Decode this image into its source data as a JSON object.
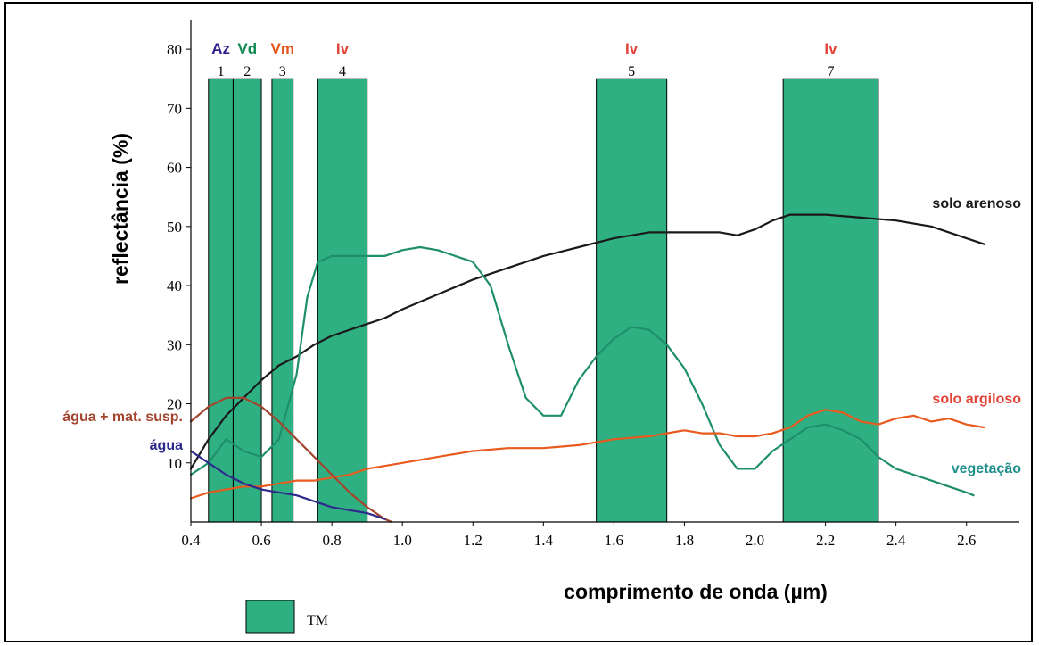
{
  "chart_data": {
    "type": "line",
    "xlabel": "comprimento de onda (µm)",
    "ylabel": "reflectância (%)",
    "xlim": [
      0.4,
      2.75
    ],
    "ylim": [
      0,
      85
    ],
    "x_ticks": [
      "0.4",
      "0.6",
      "0.8",
      "1.0",
      "1.2",
      "1.4",
      "1.6",
      "1.8",
      "2.0",
      "2.2",
      "2.4",
      "2.6"
    ],
    "y_ticks": [
      "10",
      "20",
      "30",
      "40",
      "50",
      "60",
      "70",
      "80"
    ],
    "bands": [
      {
        "number": "1",
        "code": "Az",
        "code_color": "#2e1f8c",
        "x0": 0.45,
        "x1": 0.52
      },
      {
        "number": "2",
        "code": "Vd",
        "code_color": "#0f8a52",
        "x0": 0.52,
        "x1": 0.6
      },
      {
        "number": "3",
        "code": "Vm",
        "code_color": "#e2561a",
        "x0": 0.63,
        "x1": 0.69
      },
      {
        "number": "4",
        "code": "Iv",
        "code_color": "#e2443a",
        "x0": 0.76,
        "x1": 0.9
      },
      {
        "number": "5",
        "code": "Iv",
        "code_color": "#e2443a",
        "x0": 1.55,
        "x1": 1.75
      },
      {
        "number": "7",
        "code": "Iv",
        "code_color": "#e2443a",
        "x0": 2.08,
        "x1": 2.35
      }
    ],
    "band_top": 75,
    "band_color": "#2fb082",
    "series": [
      {
        "name": "solo arenoso",
        "color": "#1a1a1a",
        "x": [
          0.4,
          0.45,
          0.5,
          0.55,
          0.6,
          0.65,
          0.7,
          0.75,
          0.8,
          0.85,
          0.9,
          0.95,
          1.0,
          1.1,
          1.2,
          1.3,
          1.4,
          1.5,
          1.6,
          1.7,
          1.8,
          1.9,
          1.95,
          2.0,
          2.05,
          2.1,
          2.2,
          2.3,
          2.4,
          2.5,
          2.6,
          2.65
        ],
        "y": [
          9,
          14,
          18,
          21,
          24,
          26.5,
          28,
          30,
          31.5,
          32.5,
          33.5,
          34.5,
          36,
          38.5,
          41,
          43,
          45,
          46.5,
          48,
          49,
          49,
          49,
          48.5,
          49.5,
          51,
          52,
          52,
          51.5,
          51,
          50,
          48,
          47
        ]
      },
      {
        "name": "vegetação",
        "color": "#1e8f6a",
        "x": [
          0.4,
          0.45,
          0.5,
          0.55,
          0.6,
          0.65,
          0.7,
          0.73,
          0.76,
          0.8,
          0.9,
          0.95,
          1.0,
          1.05,
          1.1,
          1.15,
          1.2,
          1.25,
          1.3,
          1.35,
          1.4,
          1.45,
          1.5,
          1.55,
          1.6,
          1.65,
          1.7,
          1.75,
          1.8,
          1.85,
          1.9,
          1.95,
          2.0,
          2.05,
          2.1,
          2.15,
          2.2,
          2.25,
          2.3,
          2.35,
          2.4,
          2.45,
          2.5,
          2.55,
          2.6,
          2.62
        ],
        "y": [
          8,
          10,
          14,
          12,
          11,
          14,
          25,
          38,
          44,
          45,
          45,
          45,
          46,
          46.5,
          46,
          45,
          44,
          40,
          30,
          21,
          18,
          18,
          24,
          28,
          31,
          33,
          32.5,
          30,
          26,
          20,
          13,
          9,
          9,
          12,
          14,
          16,
          16.5,
          15.5,
          14,
          11,
          9,
          8,
          7,
          6,
          5,
          4.5
        ]
      },
      {
        "name": "solo argiloso",
        "color": "#e85a1e",
        "x": [
          0.4,
          0.45,
          0.5,
          0.55,
          0.6,
          0.65,
          0.7,
          0.75,
          0.8,
          0.85,
          0.9,
          1.0,
          1.1,
          1.2,
          1.3,
          1.4,
          1.5,
          1.6,
          1.7,
          1.8,
          1.85,
          1.9,
          1.95,
          2.0,
          2.05,
          2.1,
          2.15,
          2.2,
          2.25,
          2.3,
          2.35,
          2.4,
          2.45,
          2.5,
          2.55,
          2.6,
          2.65
        ],
        "y": [
          4,
          5,
          5.5,
          6,
          6,
          6.5,
          7,
          7,
          7.5,
          8,
          9,
          10,
          11,
          12,
          12.5,
          12.5,
          13,
          14,
          14.5,
          15.5,
          15,
          15,
          14.5,
          14.5,
          15,
          16,
          18,
          19,
          18.5,
          17,
          16.5,
          17.5,
          18,
          17,
          17.5,
          16.5,
          16
        ]
      },
      {
        "name": "água + mat. susp.",
        "color": "#a3452e",
        "x": [
          0.4,
          0.45,
          0.5,
          0.55,
          0.6,
          0.65,
          0.7,
          0.75,
          0.8,
          0.85,
          0.9,
          0.95,
          0.97
        ],
        "y": [
          17,
          19.5,
          21,
          21,
          19.5,
          17,
          14,
          11,
          8,
          5,
          2.5,
          0.5,
          0
        ]
      },
      {
        "name": "água",
        "color": "#2e2a8c",
        "x": [
          0.4,
          0.45,
          0.5,
          0.55,
          0.6,
          0.65,
          0.7,
          0.75,
          0.8,
          0.85,
          0.9,
          0.95
        ],
        "y": [
          12,
          10,
          8,
          6.5,
          5.5,
          5,
          4.5,
          3.5,
          2.5,
          2,
          1.5,
          0.5
        ]
      }
    ],
    "series_labels": [
      {
        "name": "solo arenoso",
        "color": "#1a1a1a"
      },
      {
        "name": "solo argiloso",
        "color": "#e2443a"
      },
      {
        "name": "vegetação",
        "color": "#1e8f8a"
      },
      {
        "name": "água + mat. susp.",
        "color": "#a3452e"
      },
      {
        "name": "água",
        "color": "#2e2a8c"
      }
    ],
    "legend": {
      "label": "TM",
      "color": "#2fb082"
    }
  }
}
